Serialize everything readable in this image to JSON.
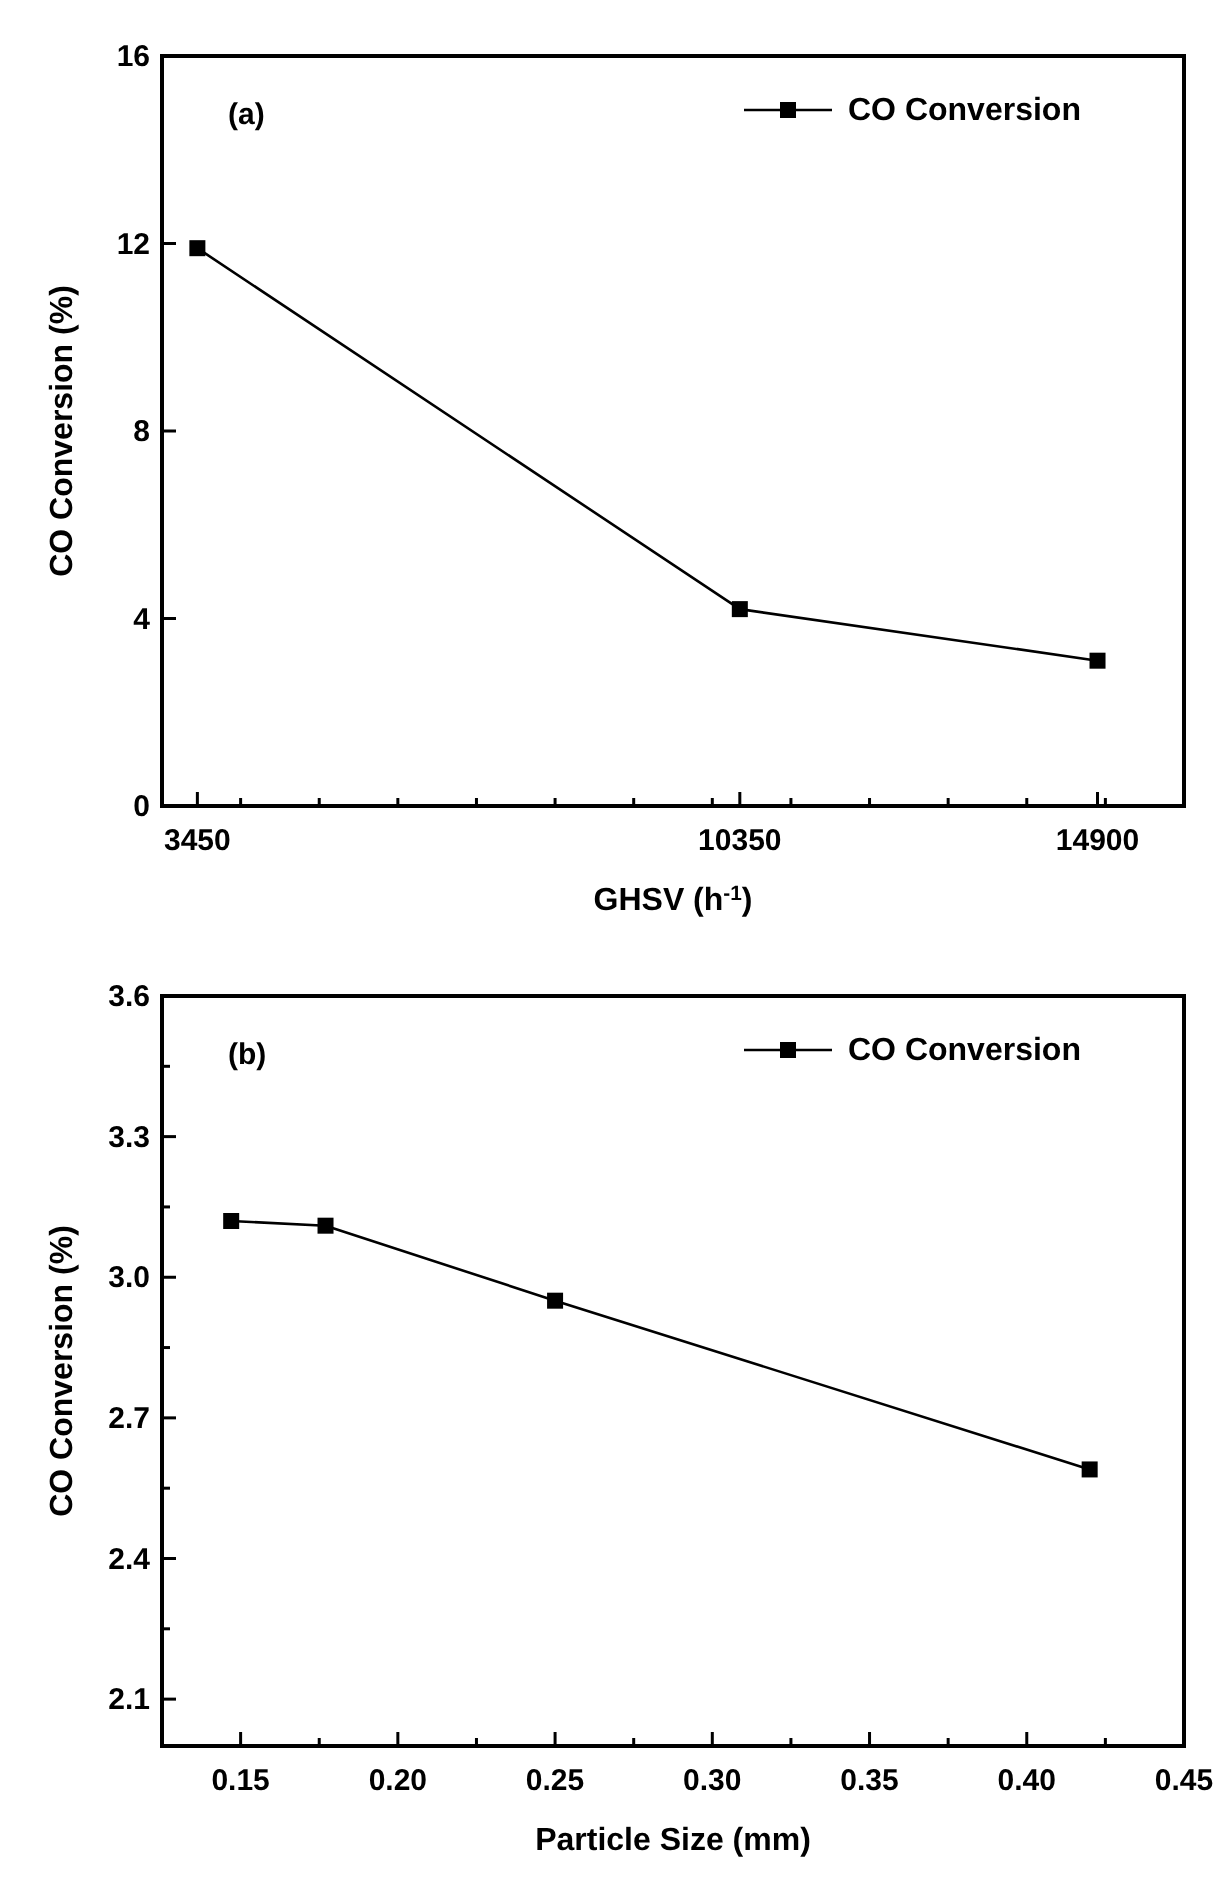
{
  "chart_data": [
    {
      "type": "line",
      "xlabel": "GHSV (h$^{-1}$)",
      "ylabel": "CO Conversion (%)",
      "annotations": [
        "(a)"
      ],
      "x": [
        3450,
        10350,
        14900
      ],
      "series": [
        {
          "name": "CO Conversion",
          "color": "#000000",
          "values": [
            11.9,
            4.2,
            3.1
          ]
        }
      ],
      "xlim": [
        3000,
        16000
      ],
      "xticks": [
        {
          "value": 3450,
          "label": "3450"
        },
        {
          "value": 10350,
          "label": "10350"
        },
        {
          "value": 14900,
          "label": "14900"
        },
        {
          "value": 4000,
          "label": null
        },
        {
          "value": 5000,
          "label": null
        },
        {
          "value": 6000,
          "label": null
        },
        {
          "value": 7000,
          "label": null
        },
        {
          "value": 8000,
          "label": null
        },
        {
          "value": 9000,
          "label": null
        },
        {
          "value": 10000,
          "label": null
        },
        {
          "value": 11000,
          "label": null
        },
        {
          "value": 12000,
          "label": null
        },
        {
          "value": 13000,
          "label": null
        },
        {
          "value": 14000,
          "label": null
        },
        {
          "value": 15000,
          "label": null
        }
      ],
      "ylim": [
        0,
        16
      ],
      "yticks": [
        0,
        4,
        8,
        12,
        16
      ],
      "legend": "top right",
      "marker": "square",
      "line_style": "solid"
    },
    {
      "type": "line",
      "xlabel": "Particle Size (mm)",
      "ylabel": "CO Conversion (%)",
      "annotations": [
        "(b)"
      ],
      "x": [
        0.147,
        0.177,
        0.25,
        0.42
      ],
      "series": [
        {
          "name": "CO Conversion",
          "color": "#000000",
          "values": [
            3.12,
            3.11,
            2.95,
            2.59
          ]
        }
      ],
      "xlim": [
        0.125,
        0.45
      ],
      "xticks": [
        {
          "value": 0.15,
          "label": "0.15"
        },
        {
          "value": 0.2,
          "label": "0.20"
        },
        {
          "value": 0.25,
          "label": "0.25"
        },
        {
          "value": 0.3,
          "label": "0.30"
        },
        {
          "value": 0.35,
          "label": "0.35"
        },
        {
          "value": 0.4,
          "label": "0.40"
        },
        {
          "value": 0.45,
          "label": "0.45"
        },
        {
          "value": 0.175,
          "label": null
        },
        {
          "value": 0.225,
          "label": null
        },
        {
          "value": 0.275,
          "label": null
        },
        {
          "value": 0.325,
          "label": null
        },
        {
          "value": 0.375,
          "label": null
        },
        {
          "value": 0.425,
          "label": null
        }
      ],
      "ylim": [
        2.0,
        3.6
      ],
      "yticks": [
        {
          "value": 2.1,
          "label": "2.1"
        },
        {
          "value": 2.4,
          "label": "2.4"
        },
        {
          "value": 2.7,
          "label": "2.7"
        },
        {
          "value": 3.0,
          "label": "3.0"
        },
        {
          "value": 3.3,
          "label": "3.3"
        },
        {
          "value": 3.6,
          "label": "3.6"
        },
        {
          "value": 2.25,
          "label": null
        },
        {
          "value": 2.55,
          "label": null
        },
        {
          "value": 2.85,
          "label": null
        },
        {
          "value": 3.15,
          "label": null
        },
        {
          "value": 3.45,
          "label": null
        }
      ],
      "legend": "top right",
      "marker": "square",
      "line_style": "solid"
    }
  ]
}
